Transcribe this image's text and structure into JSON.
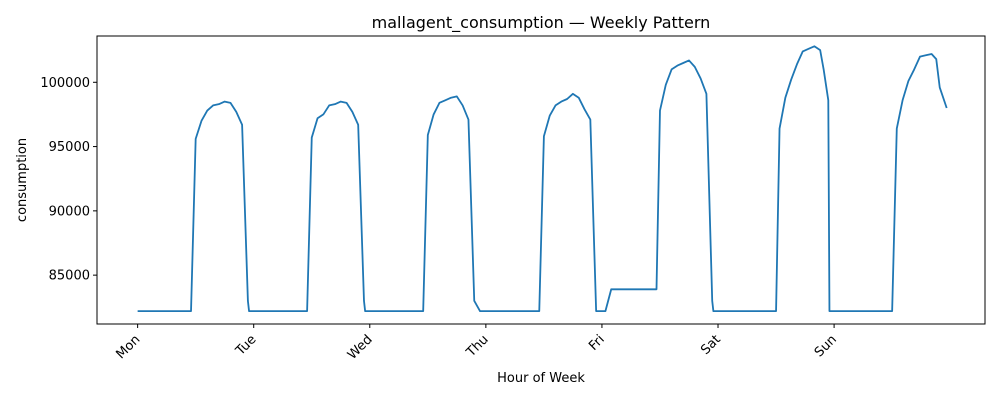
{
  "chart_data": {
    "type": "line",
    "title": "mallagent_consumption — Weekly Pattern",
    "xlabel": "Hour of Week",
    "ylabel": "consumption",
    "xlim": [
      -7,
      146
    ],
    "ylim": [
      81200,
      103600
    ],
    "x_ticks": [
      {
        "x": 0,
        "label": "Mon"
      },
      {
        "x": 20,
        "label": "Tue"
      },
      {
        "x": 40,
        "label": "Wed"
      },
      {
        "x": 60,
        "label": "Thu"
      },
      {
        "x": 80,
        "label": "Fri"
      },
      {
        "x": 100,
        "label": "Sat"
      },
      {
        "x": 120,
        "label": "Sun"
      }
    ],
    "y_ticks": [
      85000,
      90000,
      95000,
      100000
    ],
    "y_tick_labels": [
      "85000",
      "90000",
      "95000",
      "100000"
    ],
    "grid": false,
    "series": [
      {
        "color": "#1f77b4",
        "x": [
          0,
          9.2,
          10,
          11,
          12,
          13,
          14,
          15,
          16,
          17,
          18,
          19,
          19.2,
          20,
          29.2,
          30,
          31,
          32,
          33,
          34,
          35,
          36,
          37,
          38,
          39,
          39.2,
          40,
          49.2,
          50,
          51,
          52,
          53,
          54,
          55,
          56,
          57,
          58,
          59,
          59.2,
          60,
          69.2,
          70,
          71,
          72,
          73,
          74,
          75,
          76,
          77,
          78,
          79,
          79.2,
          80,
          80.6,
          81.6,
          89.4,
          90,
          91,
          92,
          93,
          94,
          95,
          96,
          97,
          98,
          99,
          99.2,
          100,
          109.2,
          110,
          110.6,
          111.6,
          112.6,
          113.6,
          114.6,
          115.6,
          116.6,
          117.6,
          118.2,
          119,
          119.2,
          120,
          129.2,
          130,
          130.8,
          131.8,
          132.8,
          133.8,
          134.8,
          135.8,
          136.8,
          137.6,
          138.2,
          139.4
        ],
        "y": [
          82200,
          82200,
          95600,
          97000,
          97800,
          98200,
          98300,
          98500,
          98400,
          97700,
          96700,
          83000,
          82200,
          82200,
          82200,
          95700,
          97200,
          97500,
          98200,
          98300,
          98500,
          98400,
          97700,
          96700,
          83000,
          82200,
          82200,
          82200,
          95900,
          97500,
          98400,
          98600,
          98800,
          98900,
          98200,
          97100,
          83000,
          82200,
          82200,
          82200,
          82200,
          95800,
          97400,
          98200,
          98500,
          98700,
          99100,
          98800,
          97900,
          97100,
          82200,
          82200,
          82200,
          82200,
          83900,
          83900,
          97800,
          99800,
          101000,
          101300,
          101500,
          101700,
          101200,
          100300,
          99100,
          83000,
          82200,
          82200,
          82200,
          82200,
          96400,
          98800,
          100200,
          101400,
          102400,
          102600,
          102800,
          102500,
          101000,
          98600,
          82200,
          82200,
          82200,
          82200,
          96400,
          98600,
          100100,
          101000,
          102000,
          102100,
          102200,
          101800,
          99600,
          98000
        ]
      }
    ]
  }
}
